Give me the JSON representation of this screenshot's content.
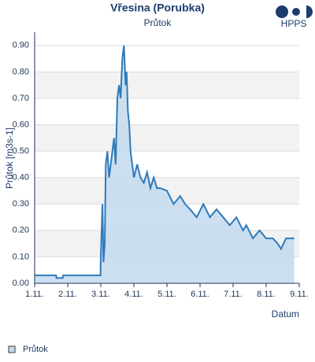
{
  "logo": "HPPS",
  "chart_data": {
    "type": "area",
    "title": "Vřesina (Porubka)",
    "subtitle": "Průtok",
    "y_label": "Průtok [m3s-1]",
    "x_label": "Datum",
    "x": [
      1,
      1.65,
      1.66,
      1.85,
      1.86,
      2.99,
      3.0,
      3.05,
      3.08,
      3.12,
      3.15,
      3.2,
      3.25,
      3.3,
      3.4,
      3.45,
      3.5,
      3.55,
      3.6,
      3.65,
      3.7,
      3.75,
      3.78,
      3.82,
      3.86,
      3.9,
      3.95,
      4.0,
      4.1,
      4.2,
      4.3,
      4.4,
      4.5,
      4.6,
      4.7,
      4.8,
      5.0,
      5.2,
      5.4,
      5.55,
      5.7,
      5.9,
      6.1,
      6.3,
      6.5,
      6.7,
      6.9,
      7.1,
      7.3,
      7.4,
      7.6,
      7.8,
      8.0,
      8.2,
      8.35,
      8.45,
      8.6,
      8.7,
      8.85
    ],
    "series": [
      {
        "name": "Průtok",
        "color": "#2f7ab9",
        "fill": "#c6dcf0",
        "values": [
          0.03,
          0.03,
          0.02,
          0.02,
          0.03,
          0.03,
          0.1,
          0.3,
          0.08,
          0.15,
          0.45,
          0.5,
          0.4,
          0.45,
          0.55,
          0.45,
          0.7,
          0.75,
          0.7,
          0.85,
          0.9,
          0.75,
          0.8,
          0.65,
          0.6,
          0.5,
          0.45,
          0.4,
          0.45,
          0.4,
          0.38,
          0.42,
          0.36,
          0.4,
          0.36,
          0.36,
          0.35,
          0.3,
          0.33,
          0.3,
          0.28,
          0.25,
          0.3,
          0.25,
          0.28,
          0.25,
          0.22,
          0.25,
          0.2,
          0.22,
          0.17,
          0.2,
          0.17,
          0.17,
          0.15,
          0.13,
          0.17,
          0.17,
          0.17
        ]
      }
    ],
    "xlim": [
      1,
      9
    ],
    "xticks": [
      {
        "value": 1,
        "label": "1.11."
      },
      {
        "value": 2,
        "label": "2.11."
      },
      {
        "value": 3,
        "label": "3.11."
      },
      {
        "value": 4,
        "label": "4.11."
      },
      {
        "value": 5,
        "label": "5.11."
      },
      {
        "value": 6,
        "label": "6.11."
      },
      {
        "value": 7,
        "label": "7.11."
      },
      {
        "value": 8,
        "label": "8.11."
      },
      {
        "value": 9,
        "label": "9.11."
      }
    ],
    "ylim": [
      0,
      0.95
    ],
    "yticks": [
      {
        "value": 0,
        "label": "0.00"
      },
      {
        "value": 0.1,
        "label": "0.10"
      },
      {
        "value": 0.2,
        "label": "0.20"
      },
      {
        "value": 0.3,
        "label": "0.30"
      },
      {
        "value": 0.4,
        "label": "0.40"
      },
      {
        "value": 0.5,
        "label": "0.50"
      },
      {
        "value": 0.6,
        "label": "0.60"
      },
      {
        "value": 0.7,
        "label": "0.70"
      },
      {
        "value": 0.8,
        "label": "0.80"
      },
      {
        "value": 0.9,
        "label": "0.90"
      }
    ],
    "grid": true,
    "legend": "bottom-left"
  }
}
